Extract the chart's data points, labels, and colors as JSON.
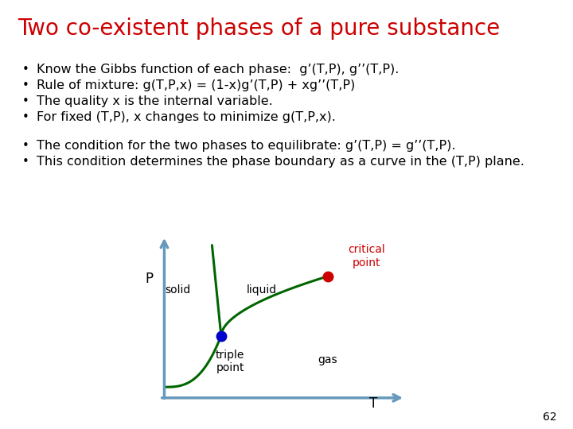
{
  "title": "Two co-existent phases of a pure substance",
  "title_color": "#cc0000",
  "title_fontsize": 20,
  "background_color": "#ffffff",
  "bullets_1": [
    "Know the Gibbs function of each phase:  g’(T,P), g’’(T,P).",
    "Rule of mixture: g(T,P,x) = (1-x)g’(T,P) + xg’’(T,P)",
    "The quality x is the internal variable.",
    "For fixed (T,P), x changes to minimize g(T,P,x)."
  ],
  "bullets_2": [
    "The condition for the two phases to equilibrate: g’(T,P) = g’’(T,P).",
    "This condition determines the phase boundary as a curve in the (T,P) plane."
  ],
  "bullet_fontsize": 11.5,
  "curve_color": "#006600",
  "axis_color": "#6699bb",
  "triple_point_color": "#0000cc",
  "critical_point_color": "#cc0000",
  "label_liquid": "liquid",
  "label_solid": "solid",
  "label_gas": "gas",
  "label_triple": "triple\npoint",
  "label_critical": "critical\npoint",
  "label_P": "P",
  "label_T": "T",
  "page_number": "62",
  "label_fontsize": 10,
  "axis_label_fontsize": 12
}
